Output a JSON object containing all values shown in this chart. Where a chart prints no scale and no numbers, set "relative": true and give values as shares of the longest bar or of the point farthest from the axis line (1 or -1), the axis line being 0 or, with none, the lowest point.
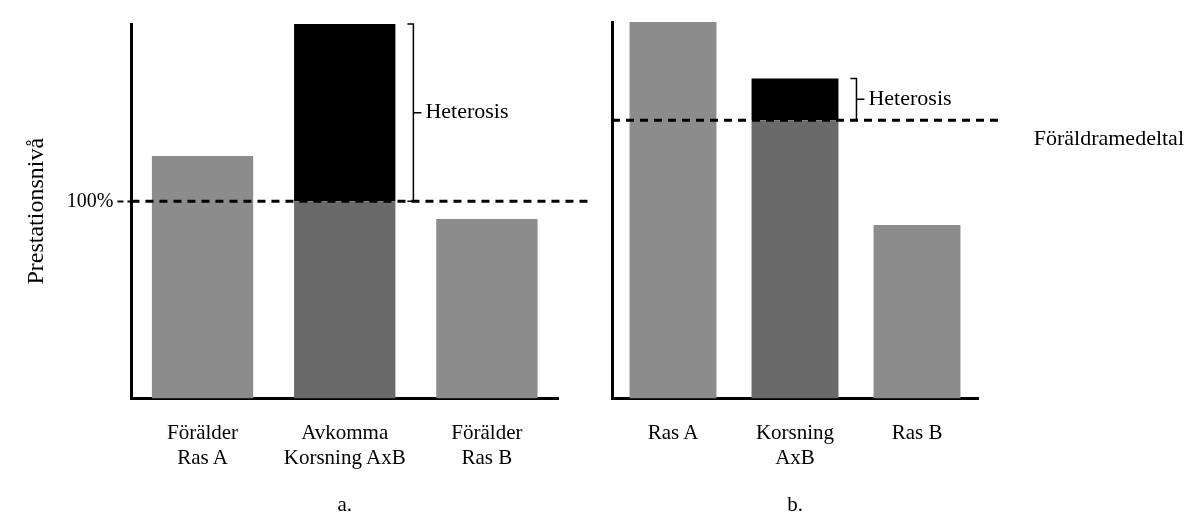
{
  "chart_data": [
    {
      "type": "bar",
      "stacked": true,
      "ylabel": "Prestationsnivå",
      "xlabel": "a.",
      "categories": [
        "Förälder\nRas A",
        "Avkomma\nKorsning AxB",
        "Förälder\nRas B"
      ],
      "ylim": [
        0,
        190
      ],
      "yticks": [
        {
          "value": 100,
          "label": "100%"
        }
      ],
      "series": [
        {
          "colors": [
            "#8c8c8c",
            "#6a6a6a",
            "#8c8c8c"
          ],
          "values": [
            123,
            100,
            91
          ]
        },
        {
          "color": "#000000",
          "values": [
            null,
            90,
            null
          ]
        }
      ],
      "ref_lines": [
        {
          "axis": "y",
          "value": 100,
          "line_style": "dashed",
          "color": "#000000"
        }
      ],
      "annotations": [
        "Heterosis"
      ],
      "legend": false,
      "grid": false
    },
    {
      "type": "bar",
      "relative": true,
      "stacked": true,
      "xlabel": "b.",
      "categories": [
        "Ras A",
        "Korsning\nAxB",
        "Ras B"
      ],
      "series": [
        {
          "colors": [
            "#8c8c8c",
            "#6a6a6a",
            "#8c8c8c"
          ],
          "values": [
            1,
            0.739,
            0.461
          ]
        },
        {
          "color": "#000000",
          "values": [
            null,
            0.111,
            null
          ]
        }
      ],
      "ref_lines": [
        {
          "axis": "y",
          "value": 0.739,
          "label": "Föräldramedeltal",
          "line_style": "dashed",
          "color": "#000000"
        }
      ],
      "annotations": [
        "Heterosis"
      ],
      "legend": false,
      "grid": false
    }
  ]
}
